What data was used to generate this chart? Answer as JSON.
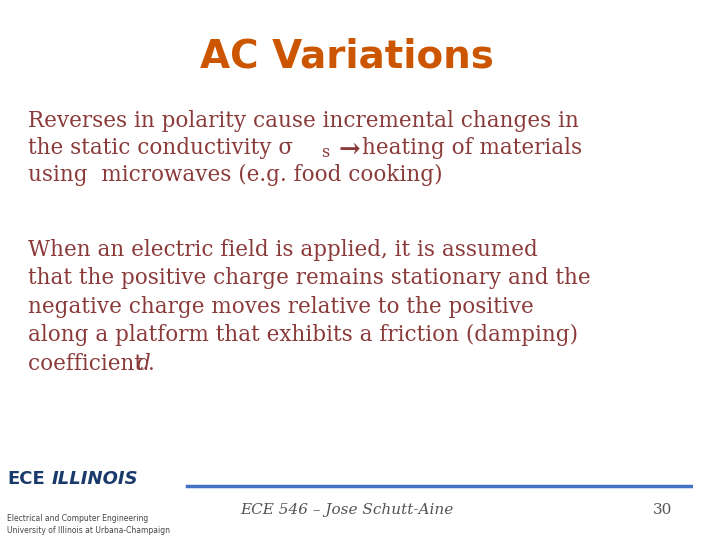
{
  "title": "AC Variations",
  "title_color": "#CC5500",
  "title_fontsize": 28,
  "bg_color": "#FFFFFF",
  "text_color": "#8B3A3A",
  "footer_text": "ECE 546 – Jose Schutt-Aine",
  "footer_page": "30",
  "footer_color": "#555555",
  "line_color": "#4472C4",
  "text_fontsize": 15.5,
  "footer_fontsize": 11
}
